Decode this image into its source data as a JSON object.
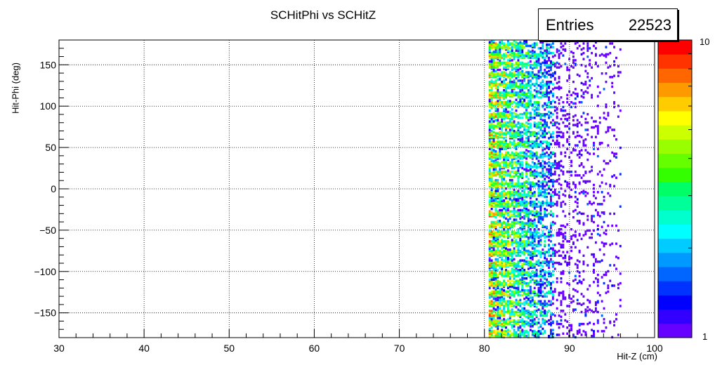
{
  "chart_data": {
    "type": "heatmap",
    "title": "SCHitPhi vs SCHitZ",
    "xlabel": "Hit-Z (cm)",
    "ylabel": "Hit-Phi (deg)",
    "xlim": [
      30,
      100
    ],
    "ylim": [
      -180,
      180
    ],
    "x_ticks": [
      30,
      40,
      50,
      60,
      70,
      80,
      90,
      100
    ],
    "y_ticks": [
      -150,
      -100,
      -50,
      0,
      50,
      100,
      150
    ],
    "z_range": [
      1,
      10
    ],
    "z_scale": "log",
    "grid": true,
    "palette": "rainbow",
    "colors": [
      "#6600ff",
      "#3300ff",
      "#0000ff",
      "#0033ff",
      "#0066ff",
      "#0099ff",
      "#00ccff",
      "#00ffff",
      "#00ffcc",
      "#00ff99",
      "#00ff66",
      "#33ff00",
      "#66ff00",
      "#99ff00",
      "#ccff00",
      "#ffff00",
      "#ffcc00",
      "#ff9900",
      "#ff6600",
      "#ff3300",
      "#ff0000"
    ],
    "stats": {
      "label": "Entries",
      "value": "22523"
    },
    "z_labels": {
      "max": "10",
      "min": "1"
    },
    "populated_x_range": [
      80.5,
      96
    ],
    "dense_x_range": [
      80.5,
      88
    ],
    "band_count": 30
  }
}
